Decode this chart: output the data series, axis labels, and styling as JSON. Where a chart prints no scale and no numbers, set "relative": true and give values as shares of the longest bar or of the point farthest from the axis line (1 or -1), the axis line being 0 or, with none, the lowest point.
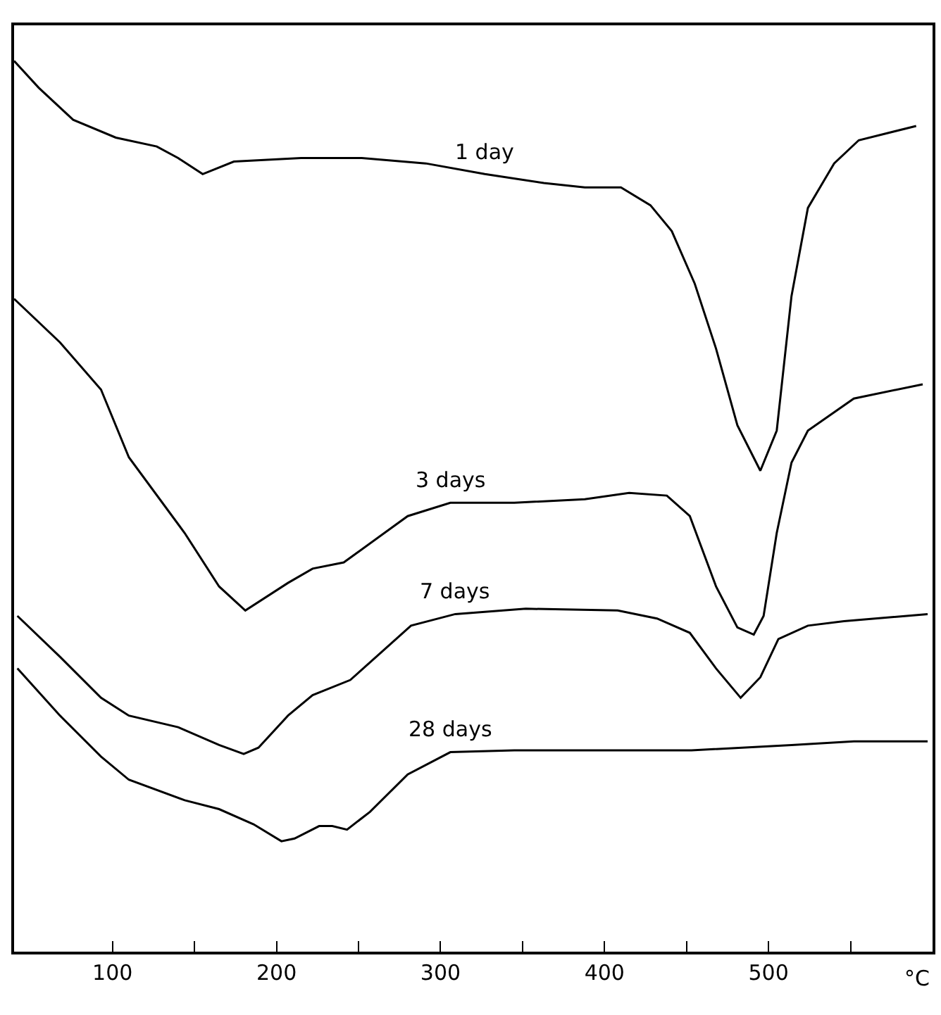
{
  "chart_data": {
    "type": "line",
    "relative": true,
    "xlabel": "°C",
    "xlim": [
      40,
      600
    ],
    "xticks": [
      100,
      {
        "value": 150,
        "label": null
      },
      200,
      {
        "value": 250,
        "label": null
      },
      300,
      {
        "value": 350,
        "label": null
      },
      400,
      {
        "value": 450,
        "label": null
      },
      500,
      {
        "value": 550,
        "label": null
      }
    ],
    "legend": false,
    "marker": "none",
    "line_style": "solid",
    "series": [
      {
        "name": "1 day",
        "color": "#000000",
        "x": [
          40,
          55,
          76,
          102,
          127,
          140,
          155,
          174,
          215,
          252,
          291,
          327,
          363,
          388,
          410,
          428,
          441,
          455,
          468,
          481,
          495,
          505,
          514,
          524,
          540,
          555,
          590
        ],
        "values": [
          1.0,
          0.97,
          0.934,
          0.914,
          0.904,
          0.891,
          0.873,
          0.887,
          0.891,
          0.891,
          0.885,
          0.873,
          0.863,
          0.858,
          0.858,
          0.838,
          0.809,
          0.75,
          0.677,
          0.591,
          0.54,
          0.585,
          0.736,
          0.835,
          0.885,
          0.911,
          0.927
        ]
      },
      {
        "name": "3 days",
        "color": "#000000",
        "x": [
          40,
          68,
          93,
          110,
          144,
          165,
          181,
          207,
          222,
          241,
          280,
          306,
          345,
          388,
          415,
          438,
          452,
          468,
          481,
          491,
          497,
          505,
          514,
          524,
          552,
          594
        ],
        "values": [
          0.733,
          0.684,
          0.631,
          0.555,
          0.47,
          0.41,
          0.383,
          0.414,
          0.43,
          0.437,
          0.489,
          0.504,
          0.504,
          0.508,
          0.515,
          0.512,
          0.489,
          0.41,
          0.364,
          0.356,
          0.377,
          0.47,
          0.549,
          0.585,
          0.621,
          0.637
        ]
      },
      {
        "name": "7 days",
        "color": "#000000",
        "x": [
          42,
          68,
          93,
          110,
          140,
          165,
          180,
          189,
          207,
          222,
          245,
          265,
          282,
          309,
          352,
          408,
          432,
          452,
          468,
          483,
          495,
          506,
          524,
          546,
          597
        ],
        "values": [
          0.377,
          0.331,
          0.285,
          0.265,
          0.252,
          0.232,
          0.222,
          0.229,
          0.265,
          0.288,
          0.305,
          0.338,
          0.366,
          0.379,
          0.385,
          0.383,
          0.374,
          0.358,
          0.318,
          0.285,
          0.308,
          0.351,
          0.366,
          0.371,
          0.379
        ]
      },
      {
        "name": "28 days",
        "color": "#000000",
        "x": [
          42,
          68,
          93,
          110,
          144,
          165,
          186,
          203,
          211,
          226,
          234,
          243,
          257,
          280,
          306,
          345,
          453,
          514,
          552,
          597
        ],
        "values": [
          0.318,
          0.265,
          0.219,
          0.193,
          0.17,
          0.16,
          0.143,
          0.124,
          0.127,
          0.141,
          0.141,
          0.137,
          0.157,
          0.199,
          0.224,
          0.226,
          0.226,
          0.232,
          0.236,
          0.236
        ]
      }
    ]
  }
}
